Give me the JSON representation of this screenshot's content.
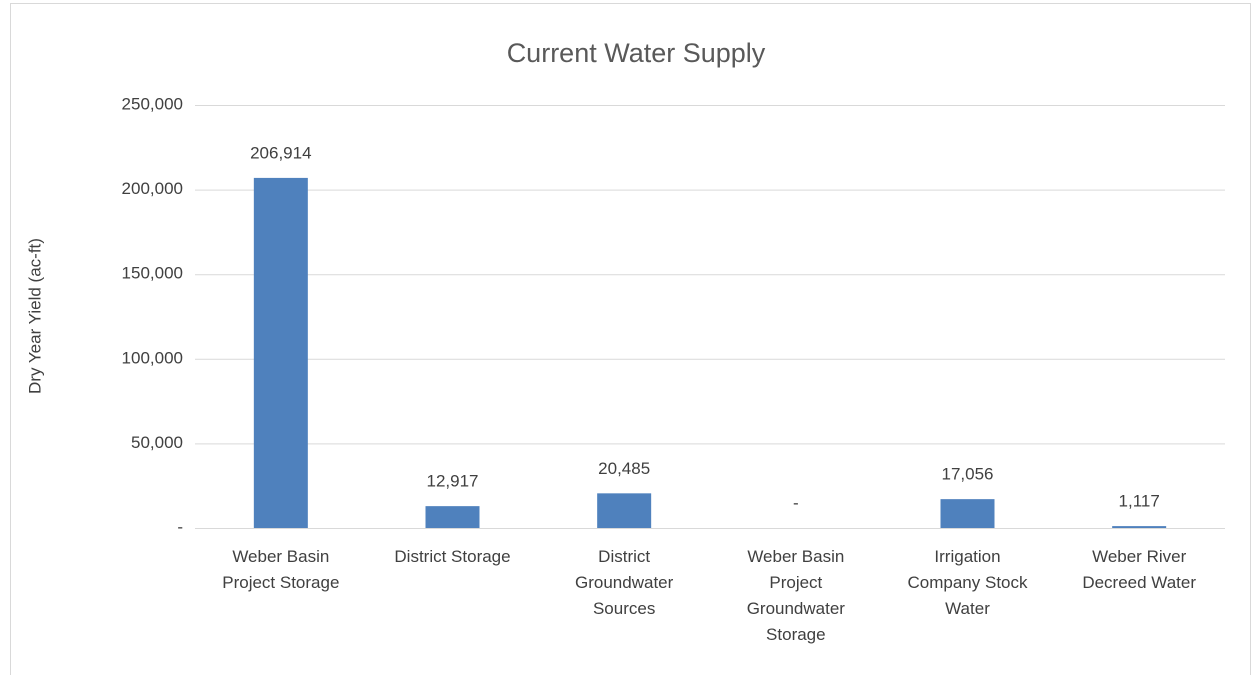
{
  "chart_data": {
    "type": "bar",
    "title": "Current Water Supply",
    "y_label": "Dry Year Yield (ac-ft)",
    "categories": [
      "Weber Basin Project Storage",
      "District Storage",
      "District Groundwater Sources",
      "Weber Basin Project Groundwater Storage",
      "Irrigation Company Stock Water",
      "Weber River Decreed Water"
    ],
    "values": [
      206914,
      12917,
      20485,
      0,
      17056,
      1117
    ],
    "value_labels": [
      "206,914",
      "12,917",
      "20,485",
      "-",
      "17,056",
      "1,117"
    ],
    "color": "#4f81bd",
    "ylim": [
      0,
      250000
    ],
    "yticks": [
      {
        "value": 0,
        "label": "-"
      },
      {
        "value": 50000,
        "label": "50,000"
      },
      {
        "value": 100000,
        "label": "100,000"
      },
      {
        "value": 150000,
        "label": "150,000"
      },
      {
        "value": 200000,
        "label": "200,000"
      },
      {
        "value": 250000,
        "label": "250,000"
      }
    ],
    "grid": true
  }
}
